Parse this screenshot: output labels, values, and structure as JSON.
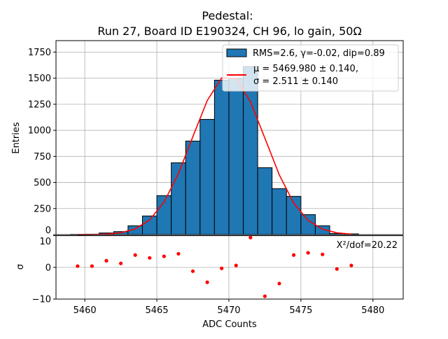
{
  "chart_data": [
    {
      "type": "bar",
      "title_line1": "Pedestal:",
      "title_line2": "Run 27, Board ID E190324, CH 96, lo gain, 50Ω",
      "xlabel": "",
      "ylabel": "Entries",
      "xlim": [
        5458,
        5482.1
      ],
      "ylim": [
        0,
        1860
      ],
      "grid": true,
      "yticks": [
        0,
        250,
        500,
        750,
        1000,
        1250,
        1500,
        1750
      ],
      "bin_edges_start": [
        5459,
        5460,
        5461,
        5462,
        5463,
        5464,
        5465,
        5466,
        5467,
        5468,
        5469,
        5470,
        5471,
        5472,
        5473,
        5474,
        5475,
        5476,
        5477,
        5478
      ],
      "bin_width": 1,
      "values": [
        2,
        4,
        16,
        29,
        85,
        179,
        374,
        689,
        897,
        1105,
        1481,
        1500,
        1611,
        642,
        441,
        367,
        192,
        85,
        11,
        7
      ],
      "fit": {
        "type": "gaussian",
        "mu": 5469.98,
        "sigma": 2.511,
        "amplitude": 1530,
        "x": [
          5459.5,
          5460.5,
          5461.5,
          5462.5,
          5463.5,
          5464.5,
          5465.5,
          5466.5,
          5467.5,
          5468.5,
          5469.5,
          5470.5,
          5471.5,
          5472.5,
          5473.5,
          5474.5,
          5475.5,
          5476.5,
          5477.5,
          5478.5
        ]
      },
      "legend": {
        "placement": "top-right",
        "entries": [
          {
            "label": "RMS=2.6, γ=-0.02, dip=0.89",
            "color": "#1f77b4",
            "kind": "patch"
          },
          {
            "label_line1": "μ = 5469.980 ± 0.140,",
            "label_line2": "σ = 2.511 ± 0.140",
            "color": "#ff0000",
            "kind": "line"
          }
        ]
      },
      "bar_color": "#1f77b4",
      "fit_color": "#ff0000"
    },
    {
      "type": "scatter",
      "xlabel": "ADC Counts",
      "ylabel": "σ",
      "xlim": [
        5458,
        5482.1
      ],
      "ylim": [
        -10,
        10
      ],
      "grid": true,
      "xticks": [
        5460,
        5465,
        5470,
        5475,
        5480
      ],
      "yticks": [
        -10,
        0,
        10
      ],
      "x": [
        5459.5,
        5460.5,
        5461.5,
        5462.5,
        5463.5,
        5464.5,
        5465.5,
        5466.5,
        5467.5,
        5468.5,
        5469.5,
        5470.5,
        5471.5,
        5472.5,
        5473.5,
        5474.5,
        5475.5,
        5476.5,
        5477.5,
        5478.5
      ],
      "y": [
        0.4,
        0.4,
        2.1,
        1.25,
        3.9,
        3.0,
        3.5,
        4.3,
        -1.2,
        -4.7,
        -0.3,
        0.6,
        9.4,
        -9.1,
        -5.1,
        3.9,
        4.6,
        4.1,
        -0.5,
        0.6
      ],
      "annotation": "X²/dof=20.22",
      "point_color": "#ff0000"
    }
  ]
}
